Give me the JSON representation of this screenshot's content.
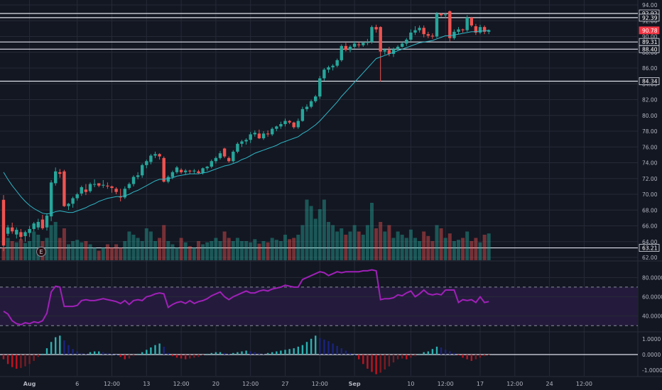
{
  "chart_data": [
    {
      "type": "candlestick",
      "pane": "price",
      "price_scale": [
        62,
        94
      ],
      "price_ticks": [
        62,
        64,
        66,
        68,
        70,
        72,
        74,
        76,
        78,
        80,
        82,
        84,
        86,
        88,
        90,
        92,
        94
      ],
      "horizontal_levels": [
        92.92,
        92.39,
        89.31,
        88.4,
        84.34,
        63.21
      ],
      "highlight_labels": [
        {
          "text": "92.92",
          "value": 92.92
        },
        {
          "text": "92.39",
          "value": 92.39
        },
        {
          "text": "90.78",
          "value": 90.78,
          "current": true
        },
        {
          "text": "89.31",
          "value": 89.31
        },
        {
          "text": "88.40",
          "value": 88.4
        },
        {
          "text": "84.34",
          "value": 84.34
        },
        {
          "text": "63.21",
          "value": 63.21
        }
      ],
      "candles_ohlc": [
        [
          69.3,
          69.9,
          62.8,
          63.5
        ],
        [
          65.0,
          66.1,
          64.7,
          65.8
        ],
        [
          65.8,
          66.4,
          65.0,
          65.3
        ],
        [
          64.9,
          65.8,
          64.4,
          65.5
        ],
        [
          65.2,
          65.6,
          64.2,
          64.6
        ],
        [
          64.7,
          65.4,
          64.0,
          65.2
        ],
        [
          65.1,
          66.0,
          64.6,
          65.6
        ],
        [
          65.6,
          66.5,
          65.3,
          66.3
        ],
        [
          65.8,
          66.9,
          65.5,
          66.5
        ],
        [
          66.8,
          67.4,
          65.5,
          65.7
        ],
        [
          65.8,
          67.6,
          65.4,
          67.3
        ],
        [
          67.2,
          71.8,
          66.6,
          71.5
        ],
        [
          71.4,
          73.4,
          71.1,
          72.9
        ],
        [
          72.8,
          73.2,
          72.1,
          72.6
        ],
        [
          72.9,
          73.1,
          68.4,
          68.5
        ],
        [
          68.5,
          68.9,
          68.0,
          68.8
        ],
        [
          68.8,
          69.7,
          68.3,
          69.5
        ],
        [
          69.5,
          70.2,
          69.2,
          70.0
        ],
        [
          70.1,
          71.1,
          69.8,
          70.9
        ],
        [
          70.6,
          71.3,
          69.9,
          70.3
        ],
        [
          70.4,
          71.5,
          70.2,
          71.3
        ],
        [
          71.3,
          71.9,
          70.9,
          71.3
        ],
        [
          71.4,
          71.4,
          70.9,
          71.1
        ],
        [
          71.1,
          71.8,
          70.8,
          71.2
        ],
        [
          71.1,
          71.5,
          70.7,
          71.0
        ],
        [
          71.0,
          71.1,
          70.2,
          70.8
        ],
        [
          70.7,
          70.9,
          70.0,
          70.3
        ],
        [
          69.7,
          70.7,
          69.1,
          69.6
        ],
        [
          69.6,
          71.0,
          69.4,
          70.7
        ],
        [
          70.8,
          71.5,
          70.6,
          71.3
        ],
        [
          71.3,
          72.4,
          71.0,
          72.2
        ],
        [
          72.2,
          72.8,
          71.9,
          72.4
        ],
        [
          72.4,
          73.9,
          72.1,
          73.7
        ],
        [
          73.7,
          74.4,
          73.3,
          74.2
        ],
        [
          74.1,
          75.1,
          73.8,
          74.9
        ],
        [
          74.9,
          75.4,
          74.6,
          75.1
        ],
        [
          75.1,
          75.2,
          74.4,
          74.8
        ],
        [
          74.6,
          74.8,
          71.5,
          71.6
        ],
        [
          71.6,
          72.4,
          71.4,
          72.2
        ],
        [
          72.2,
          73.0,
          71.9,
          72.8
        ],
        [
          72.8,
          73.6,
          72.6,
          73.4
        ],
        [
          73.1,
          73.3,
          72.6,
          72.8
        ],
        [
          72.8,
          73.2,
          72.5,
          73.0
        ],
        [
          73.0,
          73.1,
          72.6,
          72.9
        ],
        [
          72.9,
          73.2,
          72.6,
          73.0
        ],
        [
          72.9,
          73.1,
          72.6,
          72.7
        ],
        [
          72.7,
          73.4,
          72.5,
          73.3
        ],
        [
          73.3,
          73.6,
          73.0,
          73.5
        ],
        [
          73.5,
          74.4,
          73.3,
          74.2
        ],
        [
          74.2,
          74.8,
          73.9,
          74.6
        ],
        [
          74.6,
          75.5,
          74.4,
          75.2
        ],
        [
          75.8,
          75.9,
          74.6,
          74.8
        ],
        [
          74.6,
          74.8,
          74.0,
          74.2
        ],
        [
          74.2,
          75.6,
          74.0,
          75.4
        ],
        [
          75.4,
          76.6,
          75.2,
          76.4
        ],
        [
          76.4,
          76.9,
          76.0,
          76.7
        ],
        [
          76.7,
          77.1,
          76.3,
          76.9
        ],
        [
          76.9,
          77.9,
          76.5,
          77.6
        ],
        [
          77.6,
          78.1,
          77.3,
          77.8
        ],
        [
          77.7,
          78.2,
          77.0,
          77.1
        ],
        [
          77.1,
          78.0,
          76.9,
          77.7
        ],
        [
          77.7,
          78.1,
          77.3,
          77.6
        ],
        [
          77.6,
          78.5,
          77.4,
          78.3
        ],
        [
          78.3,
          78.7,
          78.0,
          78.6
        ],
        [
          78.6,
          79.2,
          78.3,
          78.9
        ],
        [
          78.9,
          79.6,
          78.6,
          79.3
        ],
        [
          79.3,
          79.4,
          78.9,
          79.1
        ],
        [
          79.1,
          79.2,
          78.3,
          78.5
        ],
        [
          78.5,
          79.6,
          78.3,
          79.3
        ],
        [
          79.3,
          81.1,
          79.2,
          80.8
        ],
        [
          80.8,
          81.4,
          80.5,
          81.1
        ],
        [
          81.1,
          82.0,
          80.9,
          81.8
        ],
        [
          81.8,
          82.6,
          81.6,
          82.4
        ],
        [
          82.4,
          85.0,
          82.1,
          84.7
        ],
        [
          84.7,
          86.0,
          84.4,
          85.8
        ],
        [
          85.8,
          86.3,
          85.4,
          86.1
        ],
        [
          86.1,
          86.5,
          85.7,
          86.3
        ],
        [
          86.3,
          87.2,
          86.1,
          87.0
        ],
        [
          87.0,
          89.0,
          86.8,
          88.8
        ],
        [
          88.8,
          89.2,
          88.1,
          88.3
        ],
        [
          88.3,
          88.9,
          88.0,
          88.7
        ],
        [
          88.7,
          89.4,
          88.5,
          89.1
        ],
        [
          89.0,
          89.3,
          88.6,
          88.9
        ],
        [
          88.9,
          89.4,
          88.7,
          89.2
        ],
        [
          89.2,
          89.7,
          88.9,
          89.3
        ],
        [
          89.3,
          91.4,
          89.1,
          91.2
        ],
        [
          91.2,
          91.5,
          90.5,
          90.9
        ],
        [
          91.2,
          91.3,
          84.3,
          88.1
        ],
        [
          88.1,
          88.5,
          87.7,
          88.3
        ],
        [
          88.3,
          88.7,
          87.5,
          87.8
        ],
        [
          87.8,
          88.6,
          87.4,
          88.4
        ],
        [
          88.4,
          88.9,
          88.2,
          88.7
        ],
        [
          88.7,
          89.3,
          88.6,
          89.1
        ],
        [
          89.1,
          89.8,
          88.8,
          89.6
        ],
        [
          89.6,
          90.9,
          89.4,
          90.5
        ],
        [
          90.5,
          91.3,
          90.2,
          90.8
        ],
        [
          90.8,
          91.4,
          90.5,
          91.1
        ],
        [
          91.1,
          91.4,
          89.9,
          90.3
        ],
        [
          90.3,
          90.6,
          89.8,
          90.1
        ],
        [
          90.1,
          90.4,
          89.7,
          90.0
        ],
        [
          90.0,
          93.1,
          89.8,
          92.9
        ],
        [
          92.9,
          93.0,
          92.5,
          92.7
        ],
        [
          92.7,
          93.0,
          92.3,
          92.8
        ],
        [
          93.2,
          93.3,
          89.4,
          89.8
        ],
        [
          89.8,
          90.9,
          89.6,
          90.6
        ],
        [
          90.6,
          91.2,
          90.3,
          90.9
        ],
        [
          90.9,
          91.0,
          90.5,
          90.8
        ],
        [
          90.8,
          92.7,
          90.6,
          92.4
        ],
        [
          92.4,
          92.5,
          91.2,
          91.4
        ],
        [
          91.3,
          91.6,
          90.2,
          90.5
        ],
        [
          90.5,
          91.5,
          90.3,
          91.2
        ],
        [
          91.2,
          91.4,
          90.3,
          90.6
        ],
        [
          90.6,
          90.9,
          90.3,
          90.8
        ]
      ],
      "ma_line": [
        72.8,
        71.9,
        71.1,
        70.4,
        69.7,
        69.1,
        68.6,
        68.2,
        67.9,
        67.6,
        67.5,
        67.6,
        67.8,
        67.9,
        67.8,
        67.7,
        67.7,
        67.9,
        68.1,
        68.3,
        68.6,
        68.8,
        69.1,
        69.3,
        69.5,
        69.6,
        69.7,
        69.7,
        69.8,
        70.0,
        70.3,
        70.5,
        70.8,
        71.1,
        71.4,
        71.7,
        71.9,
        71.9,
        72.0,
        72.1,
        72.3,
        72.4,
        72.5,
        72.6,
        72.6,
        72.6,
        72.7,
        72.8,
        73.0,
        73.2,
        73.4,
        73.6,
        73.7,
        73.9,
        74.1,
        74.4,
        74.6,
        74.9,
        75.2,
        75.4,
        75.6,
        75.8,
        76.0,
        76.2,
        76.5,
        76.7,
        76.9,
        77.1,
        77.3,
        77.7,
        78.0,
        78.4,
        78.8,
        79.3,
        79.9,
        80.5,
        81.1,
        81.7,
        82.4,
        83.0,
        83.6,
        84.2,
        84.8,
        85.4,
        86.0,
        86.6,
        87.2,
        87.4,
        87.6,
        87.8,
        88.0,
        88.2,
        88.4,
        88.6,
        88.8,
        89.0,
        89.2,
        89.3,
        89.4,
        89.5,
        89.7,
        89.9,
        90.1,
        90.1,
        90.2,
        90.3,
        90.4,
        90.5,
        90.6,
        90.6,
        90.7,
        90.7,
        90.8
      ],
      "volume_relative": [
        0.2,
        0.35,
        0.3,
        0.28,
        0.33,
        0.27,
        0.3,
        0.45,
        0.4,
        0.3,
        0.35,
        0.55,
        0.6,
        0.35,
        0.5,
        0.25,
        0.3,
        0.32,
        0.28,
        0.3,
        0.25,
        0.2,
        0.15,
        0.2,
        0.25,
        0.2,
        0.25,
        0.2,
        0.3,
        0.45,
        0.4,
        0.35,
        0.3,
        0.5,
        0.45,
        0.3,
        0.35,
        0.55,
        0.3,
        0.25,
        0.2,
        0.35,
        0.28,
        0.22,
        0.2,
        0.3,
        0.25,
        0.28,
        0.3,
        0.35,
        0.3,
        0.45,
        0.35,
        0.3,
        0.35,
        0.3,
        0.3,
        0.28,
        0.33,
        0.26,
        0.3,
        0.28,
        0.35,
        0.32,
        0.3,
        0.4,
        0.33,
        0.35,
        0.4,
        0.55,
        0.95,
        0.85,
        0.65,
        0.8,
        0.95,
        0.6,
        0.55,
        0.45,
        0.5,
        0.4,
        0.45,
        0.55,
        0.45,
        0.4,
        0.55,
        0.9,
        0.5,
        0.6,
        0.45,
        0.55,
        0.35,
        0.45,
        0.4,
        0.35,
        0.48,
        0.35,
        0.3,
        0.45,
        0.38,
        0.3,
        0.55,
        0.5,
        0.35,
        0.42,
        0.3,
        0.32,
        0.35,
        0.45,
        0.3,
        0.35,
        0.28,
        0.4,
        0.42
      ]
    },
    {
      "type": "line",
      "pane": "rsi",
      "y_ticks": [
        "80.0000",
        "60.0000",
        "40.0000"
      ],
      "ylim": [
        25,
        95
      ],
      "band": [
        30,
        70
      ],
      "values": [
        45,
        42,
        35,
        32,
        31,
        33,
        32,
        34,
        33,
        35,
        43,
        65,
        71,
        70,
        50,
        50,
        50,
        51,
        56,
        57,
        56,
        56,
        57,
        58,
        57,
        56,
        55,
        53,
        56,
        52,
        56,
        57,
        56,
        60,
        61,
        63,
        64,
        63,
        49,
        52,
        54,
        55,
        53,
        56,
        53,
        55,
        56,
        58,
        61,
        63,
        65,
        60,
        57,
        60,
        62,
        64,
        66,
        64,
        64,
        66,
        67,
        66,
        68,
        69,
        70,
        72,
        71,
        70,
        70,
        78,
        80,
        82,
        84,
        86,
        85,
        82,
        84,
        86,
        85,
        86,
        86,
        86,
        86,
        87,
        87,
        88,
        87,
        57,
        58,
        58,
        59,
        62,
        61,
        64,
        66,
        60,
        63,
        67,
        63,
        62,
        63,
        62,
        67,
        67,
        67,
        54,
        57,
        56,
        57,
        54,
        60,
        54,
        55
      ]
    },
    {
      "type": "bar",
      "pane": "oscillator",
      "y_ticks": [
        "1.0000",
        "0.0000",
        "-1.0000"
      ],
      "ylim": [
        -1.35,
        1.35
      ],
      "values": [
        -0.3,
        -0.6,
        -0.8,
        -0.9,
        -0.85,
        -0.75,
        -0.6,
        -0.4,
        -0.15,
        0.05,
        0.4,
        0.8,
        1.1,
        1.2,
        0.9,
        0.6,
        0.35,
        0.2,
        0.1,
        0.05,
        0.15,
        0.2,
        0.2,
        0.15,
        0.1,
        0.05,
        0.0,
        -0.15,
        -0.3,
        -0.25,
        -0.1,
        0.05,
        0.15,
        0.3,
        0.45,
        0.6,
        0.7,
        0.5,
        0.1,
        -0.1,
        -0.2,
        -0.25,
        -0.3,
        -0.25,
        -0.2,
        -0.15,
        -0.05,
        0.05,
        0.1,
        0.15,
        0.15,
        0.1,
        0.05,
        0.1,
        0.15,
        0.2,
        0.25,
        0.2,
        0.15,
        0.1,
        0.05,
        0.1,
        0.15,
        0.2,
        0.25,
        0.3,
        0.35,
        0.4,
        0.5,
        0.6,
        0.8,
        1.0,
        1.2,
        1.05,
        0.95,
        0.85,
        0.7,
        0.55,
        0.4,
        0.25,
        0.1,
        0.0,
        -0.3,
        -0.6,
        -0.9,
        -1.1,
        -1.25,
        -1.15,
        -0.95,
        -0.75,
        -0.5,
        -0.3,
        -0.25,
        -0.3,
        -0.2,
        -0.1,
        0.05,
        0.15,
        0.2,
        0.35,
        0.5,
        0.45,
        0.3,
        0.2,
        0.1,
        -0.05,
        -0.2,
        -0.3,
        -0.4,
        -0.3,
        -0.2,
        -0.1,
        -0.05
      ]
    }
  ],
  "x_axis": {
    "labels": [
      {
        "text": "Aug",
        "index": 6,
        "bold": true
      },
      {
        "text": "6",
        "index": 17
      },
      {
        "text": "12:00",
        "index": 25
      },
      {
        "text": "13",
        "index": 33
      },
      {
        "text": "12:00",
        "index": 41
      },
      {
        "text": "20",
        "index": 49
      },
      {
        "text": "12:00",
        "index": 57
      },
      {
        "text": "27",
        "index": 65
      },
      {
        "text": "12:00",
        "index": 73
      },
      {
        "text": "Sep",
        "index": 81,
        "bold": true
      },
      {
        "text": "10",
        "index": 94
      },
      {
        "text": "12:00",
        "index": 102
      },
      {
        "text": "17",
        "index": 110
      },
      {
        "text": "12:00",
        "index": 118
      },
      {
        "text": "24",
        "index": 126
      },
      {
        "text": "12:00",
        "index": 134
      }
    ]
  },
  "marker": {
    "text": "E"
  },
  "colors": {
    "background": "#131722",
    "grid": "#252a36",
    "up": "#26a69a",
    "down": "#ef5350",
    "ma": "#30b5c4",
    "rsi": "#a020b8",
    "rsi_band": "#241b3c",
    "hist_up": "#2ab0b0",
    "hist_down": "#c1121f",
    "hist_blue": "#1a237e",
    "current_price_label": "#f23645"
  }
}
